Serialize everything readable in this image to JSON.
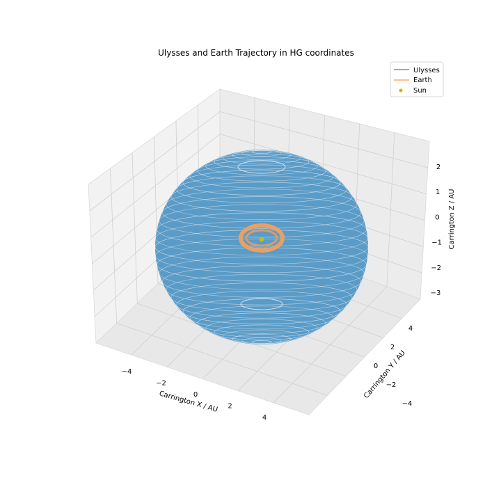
{
  "chart_data": {
    "type": "line",
    "projection": "3d",
    "title": "Ulysses and Earth Trajectory in HG coordinates",
    "xlabel": "Carrington X / AU",
    "ylabel": "Carrington Y / AU",
    "zlabel": "Carrington Z / AU",
    "xlim": [
      -5.8,
      5.8
    ],
    "ylim": [
      -5.8,
      5.8
    ],
    "zlim": [
      -3.4,
      2.8
    ],
    "xticks": [
      "−4",
      "−2",
      "0",
      "2",
      "4"
    ],
    "yticks": [
      "−4",
      "−2",
      "0",
      "2",
      "4"
    ],
    "zticks": [
      "2",
      "1",
      "0",
      "−1",
      "−2",
      "−3"
    ],
    "grid": true,
    "legend_position": "top-right",
    "series": [
      {
        "name": "Ulysses",
        "kind": "line",
        "color": "#1f77b4",
        "shape": "dense spherical-shell trajectory",
        "radius_au": 5.4,
        "z_range": [
          -3.0,
          2.1
        ]
      },
      {
        "name": "Earth",
        "kind": "line",
        "color": "#ff7f0e",
        "shape": "circular orbit",
        "radius_au": 1.0,
        "z_range": [
          -0.1,
          0.1
        ]
      },
      {
        "name": "Sun",
        "kind": "scatter",
        "color": "#bcbd22",
        "x": 0,
        "y": 0,
        "z": 0
      }
    ]
  }
}
